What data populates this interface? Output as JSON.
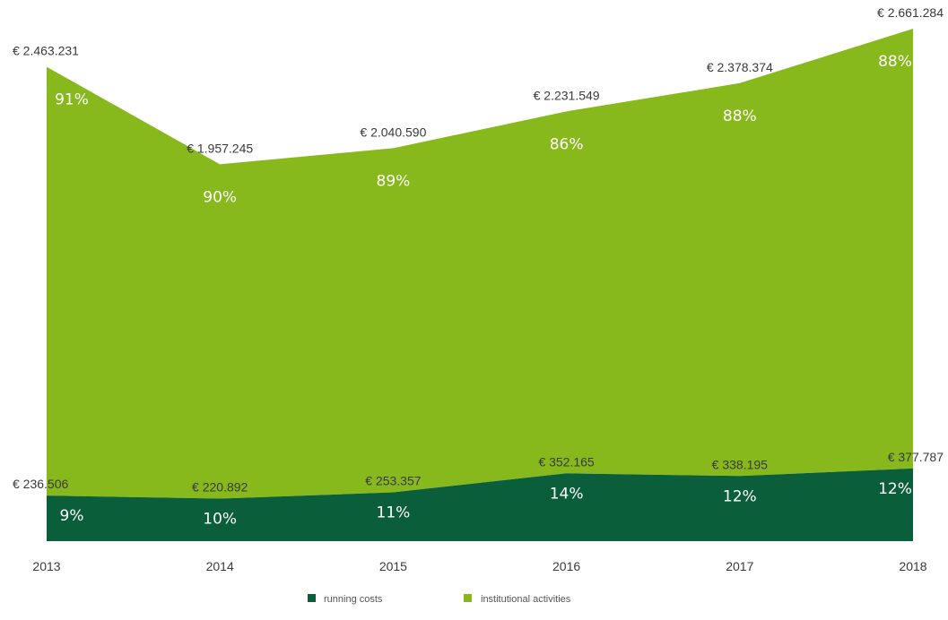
{
  "chart_data": {
    "type": "area",
    "stacked": true,
    "categories": [
      "2013",
      "2014",
      "2015",
      "2016",
      "2017",
      "2018"
    ],
    "series": [
      {
        "name": "running costs",
        "color": "#0b5e3a",
        "values": [
          236506,
          220892,
          253357,
          352165,
          338195,
          377787
        ],
        "value_labels": [
          "€ 236.506",
          "€ 220.892",
          "€ 253.357",
          "€ 352.165",
          "€ 338.195",
          "€ 377.787"
        ],
        "percent_labels": [
          "9%",
          "10%",
          "11%",
          "14%",
          "12%",
          "12%"
        ]
      },
      {
        "name": "institutional activities",
        "color": "#87b81c",
        "percent_labels": [
          "91%",
          "90%",
          "89%",
          "86%",
          "88%",
          "88%"
        ]
      }
    ],
    "totals": [
      2463231,
      1957245,
      2040590,
      2231549,
      2378374,
      2661284
    ],
    "total_labels": [
      "€ 2.463.231",
      "€ 1.957.245",
      "€ 2.040.590",
      "€ 2.231.549",
      "€ 2.378.374",
      "€ 2.661.284"
    ],
    "ylim": [
      0,
      2661284
    ],
    "grid": false,
    "legend_position": "bottom-center"
  }
}
